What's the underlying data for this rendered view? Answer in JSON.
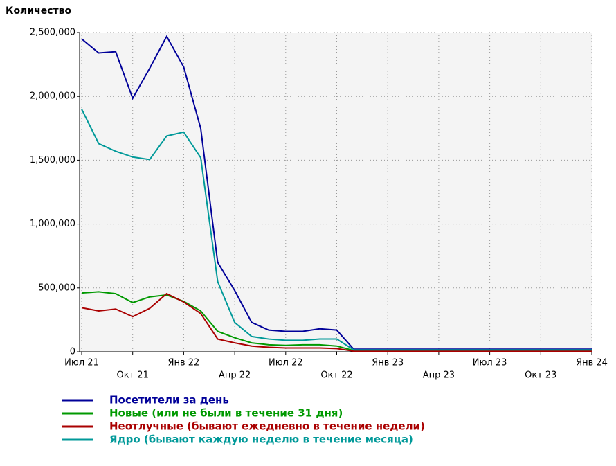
{
  "chart_data": {
    "type": "line",
    "y_label": "Количество",
    "categories": [
      "Июл 21",
      null,
      null,
      "Окт 21",
      null,
      null,
      "Янв 22",
      null,
      null,
      "Апр 22",
      null,
      null,
      "Июл 22",
      null,
      null,
      "Окт 22",
      null,
      null,
      "Янв 23",
      null,
      null,
      "Апр 23",
      null,
      null,
      "Июл 23",
      null,
      null,
      "Окт 23",
      null,
      null,
      "Янв 24"
    ],
    "series": [
      {
        "name": "Посетители за день",
        "color": "#000099",
        "values": [
          2450000,
          2340000,
          2350000,
          1985000,
          2220000,
          2470000,
          2230000,
          1750000,
          700000,
          480000,
          230000,
          170000,
          160000,
          160000,
          180000,
          170000,
          20000,
          20000,
          20000,
          20000,
          20000,
          20000,
          20000,
          20000,
          20000,
          20000,
          20000,
          20000,
          20000,
          20000,
          20000
        ]
      },
      {
        "name": "Новые (или не были в течение 31 дня)",
        "color": "#009900",
        "values": [
          460000,
          470000,
          455000,
          385000,
          430000,
          445000,
          395000,
          320000,
          160000,
          110000,
          70000,
          55000,
          50000,
          55000,
          55000,
          45000,
          10000,
          10000,
          10000,
          10000,
          10000,
          10000,
          10000,
          10000,
          10000,
          10000,
          10000,
          10000,
          10000,
          10000,
          10000
        ]
      },
      {
        "name": "Неотлучные (бывают ежедневно в течение недели)",
        "color": "#aa0000",
        "values": [
          345000,
          320000,
          335000,
          275000,
          340000,
          455000,
          390000,
          300000,
          100000,
          70000,
          45000,
          35000,
          30000,
          30000,
          30000,
          25000,
          5000,
          5000,
          5000,
          5000,
          5000,
          5000,
          5000,
          5000,
          5000,
          5000,
          5000,
          5000,
          5000,
          5000,
          5000
        ]
      },
      {
        "name": "Ядро (бывают каждую неделю в течение месяца)",
        "color": "#009999",
        "values": [
          1900000,
          1630000,
          1570000,
          1525000,
          1505000,
          1690000,
          1720000,
          1520000,
          550000,
          230000,
          120000,
          100000,
          90000,
          90000,
          100000,
          100000,
          15000,
          15000,
          15000,
          15000,
          15000,
          15000,
          15000,
          15000,
          15000,
          15000,
          15000,
          15000,
          15000,
          15000,
          15000
        ]
      }
    ],
    "ylim": [
      0,
      2500000
    ],
    "yticks": [
      0,
      {
        "value": 500000,
        "label": "500,000"
      },
      {
        "value": 1000000,
        "label": "1,000,000"
      },
      {
        "value": 1500000,
        "label": "1,500,000"
      },
      {
        "value": 2000000,
        "label": "2,000,000"
      },
      {
        "value": 2500000,
        "label": "2,500,000"
      }
    ],
    "grid": true
  }
}
